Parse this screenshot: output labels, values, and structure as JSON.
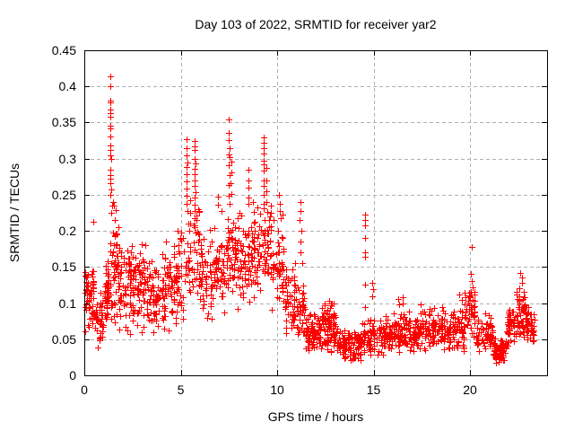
{
  "window": {
    "background": "#ffffff"
  },
  "chart_data": {
    "type": "scatter",
    "title": "Day 103 of 2022, SRMTID for receiver yar2",
    "xlabel": "GPS time / hours",
    "ylabel": "SRMTID / TECUs",
    "xlim": [
      0,
      24
    ],
    "ylim": [
      0,
      0.45
    ],
    "xticks": [
      0,
      5,
      10,
      15,
      20
    ],
    "xtick_labels": [
      "0",
      "5",
      "10",
      "15",
      "20"
    ],
    "yticks": [
      0,
      0.05,
      0.1,
      0.15,
      0.2,
      0.25,
      0.3,
      0.35,
      0.4,
      0.45
    ],
    "ytick_labels": [
      "0",
      "0.05",
      "0.1",
      "0.15",
      "0.2",
      "0.25",
      "0.3",
      "0.35",
      "0.4",
      "0.45"
    ],
    "grid": true,
    "legend": "none",
    "marker": "plus",
    "marker_size": 7,
    "marker_color": "#ff0000",
    "grid_color": "#b0b0b0",
    "axis_color": "#000000",
    "seed": 7,
    "bands_comment": "dense point cloud envelope read from pixels: [t_start_h, t_end_h, n_points, y_min_TECU, y_max_TECU]",
    "bands": [
      [
        0.02,
        0.5,
        55,
        0.05,
        0.155
      ],
      [
        0.5,
        1.0,
        42,
        0.03,
        0.125
      ],
      [
        1.0,
        1.3,
        45,
        0.06,
        0.16
      ],
      [
        1.3,
        1.7,
        48,
        0.07,
        0.26
      ],
      [
        1.7,
        2.2,
        45,
        0.05,
        0.185
      ],
      [
        2.2,
        2.7,
        50,
        0.05,
        0.2
      ],
      [
        2.7,
        3.3,
        55,
        0.05,
        0.195
      ],
      [
        3.3,
        4.0,
        55,
        0.04,
        0.175
      ],
      [
        4.0,
        4.6,
        50,
        0.05,
        0.2
      ],
      [
        4.6,
        5.3,
        55,
        0.05,
        0.225
      ],
      [
        5.3,
        6.0,
        50,
        0.08,
        0.25
      ],
      [
        6.0,
        6.7,
        50,
        0.07,
        0.21
      ],
      [
        6.7,
        7.3,
        50,
        0.08,
        0.22
      ],
      [
        7.3,
        7.9,
        50,
        0.1,
        0.235
      ],
      [
        7.9,
        8.6,
        55,
        0.09,
        0.23
      ],
      [
        8.6,
        9.2,
        50,
        0.1,
        0.24
      ],
      [
        9.2,
        9.7,
        45,
        0.12,
        0.255
      ],
      [
        9.7,
        10.4,
        50,
        0.07,
        0.23
      ],
      [
        10.4,
        11.0,
        50,
        0.05,
        0.16
      ],
      [
        11.0,
        11.45,
        38,
        0.04,
        0.135
      ],
      [
        11.45,
        12.3,
        85,
        0.03,
        0.09
      ],
      [
        12.3,
        13.1,
        85,
        0.03,
        0.105
      ],
      [
        13.1,
        14.4,
        115,
        0.018,
        0.068
      ],
      [
        14.4,
        15.1,
        55,
        0.025,
        0.08
      ],
      [
        15.1,
        16.0,
        70,
        0.025,
        0.085
      ],
      [
        16.0,
        17.0,
        78,
        0.03,
        0.095
      ],
      [
        17.0,
        18.0,
        78,
        0.03,
        0.092
      ],
      [
        18.0,
        19.0,
        78,
        0.03,
        0.095
      ],
      [
        19.0,
        19.7,
        55,
        0.03,
        0.095
      ],
      [
        19.7,
        20.3,
        45,
        0.05,
        0.125
      ],
      [
        20.3,
        21.2,
        65,
        0.025,
        0.09
      ],
      [
        21.2,
        21.9,
        70,
        0.015,
        0.055
      ],
      [
        21.9,
        22.4,
        45,
        0.03,
        0.1
      ],
      [
        22.4,
        22.9,
        50,
        0.05,
        0.125
      ],
      [
        22.9,
        23.35,
        40,
        0.04,
        0.09
      ]
    ],
    "peaks_comment": "distinct high/outlier markers read individually from the image: [t_hours, SRMTID_TECU]",
    "peaks": [
      [
        0.45,
        0.213
      ],
      [
        1.6,
        0.215
      ],
      [
        1.75,
        0.205
      ],
      [
        1.33,
        0.414
      ],
      [
        1.34,
        0.4
      ],
      [
        1.33,
        0.381
      ],
      [
        1.36,
        0.378
      ],
      [
        1.34,
        0.368
      ],
      [
        1.37,
        0.363
      ],
      [
        1.35,
        0.358
      ],
      [
        1.33,
        0.345
      ],
      [
        1.36,
        0.342
      ],
      [
        1.34,
        0.331
      ],
      [
        1.33,
        0.318
      ],
      [
        1.36,
        0.312
      ],
      [
        1.35,
        0.305
      ],
      [
        1.38,
        0.3
      ],
      [
        1.34,
        0.285
      ],
      [
        1.36,
        0.277
      ],
      [
        1.35,
        0.272
      ],
      [
        1.37,
        0.266
      ],
      [
        1.4,
        0.257
      ],
      [
        1.34,
        0.25
      ],
      [
        5.3,
        0.327
      ],
      [
        5.32,
        0.315
      ],
      [
        5.28,
        0.305
      ],
      [
        5.33,
        0.295
      ],
      [
        5.3,
        0.288
      ],
      [
        5.31,
        0.278
      ],
      [
        5.29,
        0.268
      ],
      [
        5.32,
        0.258
      ],
      [
        5.3,
        0.248
      ],
      [
        5.31,
        0.237
      ],
      [
        5.33,
        0.228
      ],
      [
        5.72,
        0.325
      ],
      [
        5.74,
        0.317
      ],
      [
        5.7,
        0.312
      ],
      [
        5.73,
        0.3
      ],
      [
        5.75,
        0.293
      ],
      [
        5.71,
        0.286
      ],
      [
        5.74,
        0.278
      ],
      [
        5.72,
        0.27
      ],
      [
        5.7,
        0.262
      ],
      [
        5.75,
        0.254
      ],
      [
        5.73,
        0.246
      ],
      [
        5.71,
        0.236
      ],
      [
        5.74,
        0.228
      ],
      [
        5.72,
        0.218
      ],
      [
        5.7,
        0.208
      ],
      [
        5.75,
        0.198
      ],
      [
        6.92,
        0.247
      ],
      [
        6.95,
        0.236
      ],
      [
        7.1,
        0.228
      ],
      [
        7.5,
        0.354
      ],
      [
        7.51,
        0.336
      ],
      [
        7.49,
        0.326
      ],
      [
        7.52,
        0.314
      ],
      [
        7.5,
        0.306
      ],
      [
        7.53,
        0.302
      ],
      [
        7.5,
        0.291
      ],
      [
        7.52,
        0.277
      ],
      [
        7.5,
        0.263
      ],
      [
        7.51,
        0.248
      ],
      [
        7.53,
        0.238
      ],
      [
        7.62,
        0.296
      ],
      [
        7.63,
        0.281
      ],
      [
        7.6,
        0.266
      ],
      [
        7.64,
        0.251
      ],
      [
        8.5,
        0.285
      ],
      [
        8.52,
        0.27
      ],
      [
        8.49,
        0.26
      ],
      [
        8.51,
        0.246
      ],
      [
        8.53,
        0.238
      ],
      [
        8.75,
        0.24
      ],
      [
        9.28,
        0.33
      ],
      [
        9.29,
        0.322
      ],
      [
        9.3,
        0.315
      ],
      [
        9.28,
        0.307
      ],
      [
        9.31,
        0.297
      ],
      [
        9.29,
        0.292
      ],
      [
        9.3,
        0.283
      ],
      [
        9.28,
        0.27
      ],
      [
        9.32,
        0.262
      ],
      [
        9.3,
        0.25
      ],
      [
        9.29,
        0.238
      ],
      [
        9.42,
        0.287
      ],
      [
        9.44,
        0.27
      ],
      [
        9.43,
        0.255
      ],
      [
        9.45,
        0.24
      ],
      [
        10.1,
        0.25
      ],
      [
        10.12,
        0.238
      ],
      [
        10.15,
        0.228
      ],
      [
        10.2,
        0.217
      ],
      [
        10.3,
        0.222
      ],
      [
        11.2,
        0.24
      ],
      [
        11.22,
        0.228
      ],
      [
        11.18,
        0.215
      ],
      [
        11.25,
        0.2
      ],
      [
        11.2,
        0.185
      ],
      [
        11.23,
        0.17
      ],
      [
        11.3,
        0.155
      ],
      [
        12.7,
        0.103
      ],
      [
        12.85,
        0.1
      ],
      [
        14.55,
        0.222
      ],
      [
        14.56,
        0.215
      ],
      [
        14.54,
        0.208
      ],
      [
        14.55,
        0.19
      ],
      [
        14.57,
        0.17
      ],
      [
        14.55,
        0.164
      ],
      [
        14.56,
        0.125
      ],
      [
        14.54,
        0.095
      ],
      [
        14.95,
        0.128
      ],
      [
        14.96,
        0.119
      ],
      [
        14.94,
        0.11
      ],
      [
        16.3,
        0.106
      ],
      [
        16.32,
        0.098
      ],
      [
        16.5,
        0.108
      ],
      [
        16.52,
        0.1
      ],
      [
        17.45,
        0.098
      ],
      [
        17.9,
        0.092
      ],
      [
        18.0,
        0.09
      ],
      [
        18.55,
        0.095
      ],
      [
        18.6,
        0.089
      ],
      [
        19.45,
        0.112
      ],
      [
        19.6,
        0.105
      ],
      [
        19.7,
        0.098
      ],
      [
        20.1,
        0.178
      ],
      [
        20.05,
        0.14
      ],
      [
        20.08,
        0.131
      ],
      [
        20.12,
        0.122
      ],
      [
        20.0,
        0.11
      ],
      [
        20.15,
        0.104
      ],
      [
        22.62,
        0.142
      ],
      [
        22.68,
        0.135
      ],
      [
        22.72,
        0.128
      ],
      [
        22.58,
        0.12
      ],
      [
        22.78,
        0.115
      ],
      [
        22.85,
        0.108
      ],
      [
        23.0,
        0.095
      ],
      [
        23.1,
        0.085
      ]
    ]
  }
}
